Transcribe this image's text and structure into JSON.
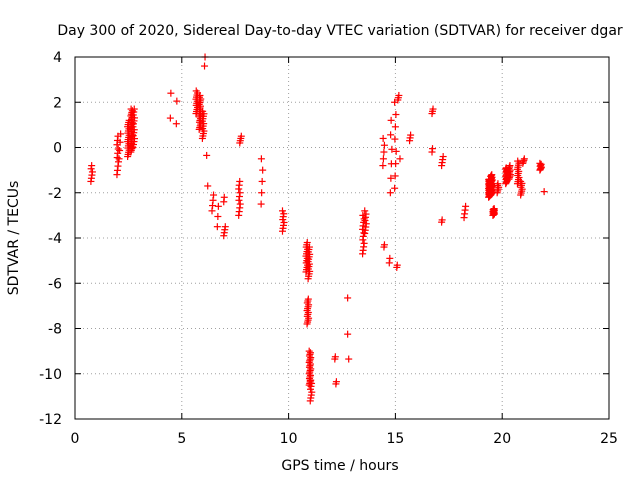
{
  "chart_data": {
    "type": "scatter",
    "title": "Day 300 of 2020, Sidereal Day-to-day VTEC variation (SDTVAR) for receiver dgar",
    "xlabel": "GPS time / hours",
    "ylabel": "SDTVAR / TECUs",
    "xlim": [
      0,
      25
    ],
    "ylim": [
      -12,
      4
    ],
    "xticks": [
      0,
      5,
      10,
      15,
      20,
      25
    ],
    "yticks": [
      4,
      2,
      0,
      -2,
      -4,
      -6,
      -8,
      -10,
      -12
    ],
    "grid": true,
    "marker": "+",
    "marker_color": "#ff0000",
    "clusters": [
      {
        "x": 0.78,
        "y_min": -1.5,
        "y_max": -0.8,
        "n": 6
      },
      {
        "x": 2.0,
        "y_min": -1.2,
        "y_max": 0.5,
        "n": 10
      },
      {
        "x": 2.1,
        "y_min": -0.5,
        "y_max": 0.6,
        "n": 4
      },
      {
        "x": 2.5,
        "y_min": -0.4,
        "y_max": 1.2,
        "n": 18
      },
      {
        "x": 2.65,
        "y_min": -0.2,
        "y_max": 1.7,
        "n": 26
      },
      {
        "x": 2.75,
        "y_min": 0.0,
        "y_max": 1.7,
        "n": 14
      },
      {
        "x": 4.5,
        "y_min": 1.3,
        "y_max": 2.4,
        "n": 2
      },
      {
        "x": 4.78,
        "y_min": 1.05,
        "y_max": 2.05,
        "n": 2
      },
      {
        "x": 5.7,
        "y_min": 1.5,
        "y_max": 2.5,
        "n": 12
      },
      {
        "x": 5.85,
        "y_min": 0.8,
        "y_max": 2.3,
        "n": 20
      },
      {
        "x": 6.0,
        "y_min": 0.4,
        "y_max": 1.6,
        "n": 12
      },
      {
        "x": 6.1,
        "y_min": 3.6,
        "y_max": 4.0,
        "n": 2
      },
      {
        "x": 6.2,
        "y_min": -0.35,
        "y_max": -0.35,
        "n": 1
      },
      {
        "x": 6.25,
        "y_min": -1.7,
        "y_max": -1.7,
        "n": 1
      },
      {
        "x": 6.45,
        "y_min": -2.8,
        "y_max": -2.1,
        "n": 4
      },
      {
        "x": 6.7,
        "y_min": -3.5,
        "y_max": -2.6,
        "n": 3
      },
      {
        "x": 7.0,
        "y_min": -3.9,
        "y_max": -3.5,
        "n": 4
      },
      {
        "x": 7.0,
        "y_min": -2.4,
        "y_max": -2.2,
        "n": 2
      },
      {
        "x": 7.7,
        "y_min": -3.0,
        "y_max": -1.5,
        "n": 10
      },
      {
        "x": 7.75,
        "y_min": 0.2,
        "y_max": 0.5,
        "n": 4
      },
      {
        "x": 8.75,
        "y_min": -2.5,
        "y_max": -0.5,
        "n": 5
      },
      {
        "x": 9.75,
        "y_min": -3.7,
        "y_max": -2.8,
        "n": 8
      },
      {
        "x": 10.85,
        "y_min": -5.5,
        "y_max": -4.2,
        "n": 14
      },
      {
        "x": 10.95,
        "y_min": -5.8,
        "y_max": -4.4,
        "n": 14
      },
      {
        "x": 10.9,
        "y_min": -7.8,
        "y_max": -6.7,
        "n": 14
      },
      {
        "x": 11.0,
        "y_min": -10.5,
        "y_max": -9.0,
        "n": 22
      },
      {
        "x": 11.05,
        "y_min": -11.2,
        "y_max": -10.3,
        "n": 8
      },
      {
        "x": 12.2,
        "y_min": -9.35,
        "y_max": -9.25,
        "n": 2
      },
      {
        "x": 12.25,
        "y_min": -10.45,
        "y_max": -10.35,
        "n": 2
      },
      {
        "x": 12.8,
        "y_min": -6.65,
        "y_max": -6.65,
        "n": 1
      },
      {
        "x": 12.8,
        "y_min": -8.25,
        "y_max": -8.25,
        "n": 1
      },
      {
        "x": 12.85,
        "y_min": -9.35,
        "y_max": -9.35,
        "n": 1
      },
      {
        "x": 13.5,
        "y_min": -4.7,
        "y_max": -3.0,
        "n": 12
      },
      {
        "x": 13.6,
        "y_min": -3.8,
        "y_max": -2.8,
        "n": 8
      },
      {
        "x": 14.45,
        "y_min": -0.8,
        "y_max": 0.4,
        "n": 5
      },
      {
        "x": 14.5,
        "y_min": -4.4,
        "y_max": -4.3,
        "n": 2
      },
      {
        "x": 14.75,
        "y_min": -5.1,
        "y_max": -4.9,
        "n": 2
      },
      {
        "x": 14.8,
        "y_min": -2.0,
        "y_max": 1.2,
        "n": 6
      },
      {
        "x": 15.0,
        "y_min": -1.8,
        "y_max": 2.0,
        "n": 8
      },
      {
        "x": 15.1,
        "y_min": -5.3,
        "y_max": -5.2,
        "n": 2
      },
      {
        "x": 15.15,
        "y_min": 2.1,
        "y_max": 2.3,
        "n": 3
      },
      {
        "x": 15.25,
        "y_min": -0.5,
        "y_max": -0.5,
        "n": 1
      },
      {
        "x": 15.7,
        "y_min": 0.3,
        "y_max": 0.55,
        "n": 3
      },
      {
        "x": 16.75,
        "y_min": 1.5,
        "y_max": 1.7,
        "n": 3
      },
      {
        "x": 16.75,
        "y_min": -0.2,
        "y_max": -0.05,
        "n": 2
      },
      {
        "x": 17.2,
        "y_min": -0.8,
        "y_max": -0.4,
        "n": 4
      },
      {
        "x": 17.2,
        "y_min": -3.3,
        "y_max": -3.2,
        "n": 2
      },
      {
        "x": 18.25,
        "y_min": -3.1,
        "y_max": -2.6,
        "n": 4
      },
      {
        "x": 19.4,
        "y_min": -2.2,
        "y_max": -1.4,
        "n": 30
      },
      {
        "x": 19.5,
        "y_min": -2.1,
        "y_max": -1.2,
        "n": 24
      },
      {
        "x": 19.6,
        "y_min": -3.0,
        "y_max": -2.7,
        "n": 14
      },
      {
        "x": 19.8,
        "y_min": -2.0,
        "y_max": -1.6,
        "n": 6
      },
      {
        "x": 20.2,
        "y_min": -1.6,
        "y_max": -0.9,
        "n": 16
      },
      {
        "x": 20.35,
        "y_min": -1.4,
        "y_max": -0.8,
        "n": 10
      },
      {
        "x": 20.75,
        "y_min": -1.6,
        "y_max": -0.6,
        "n": 12
      },
      {
        "x": 20.9,
        "y_min": -2.1,
        "y_max": -1.5,
        "n": 8
      },
      {
        "x": 21.0,
        "y_min": -0.7,
        "y_max": -0.5,
        "n": 4
      },
      {
        "x": 21.8,
        "y_min": -1.0,
        "y_max": -0.7,
        "n": 8
      },
      {
        "x": 22.0,
        "y_min": -1.95,
        "y_max": -1.95,
        "n": 1
      }
    ]
  }
}
